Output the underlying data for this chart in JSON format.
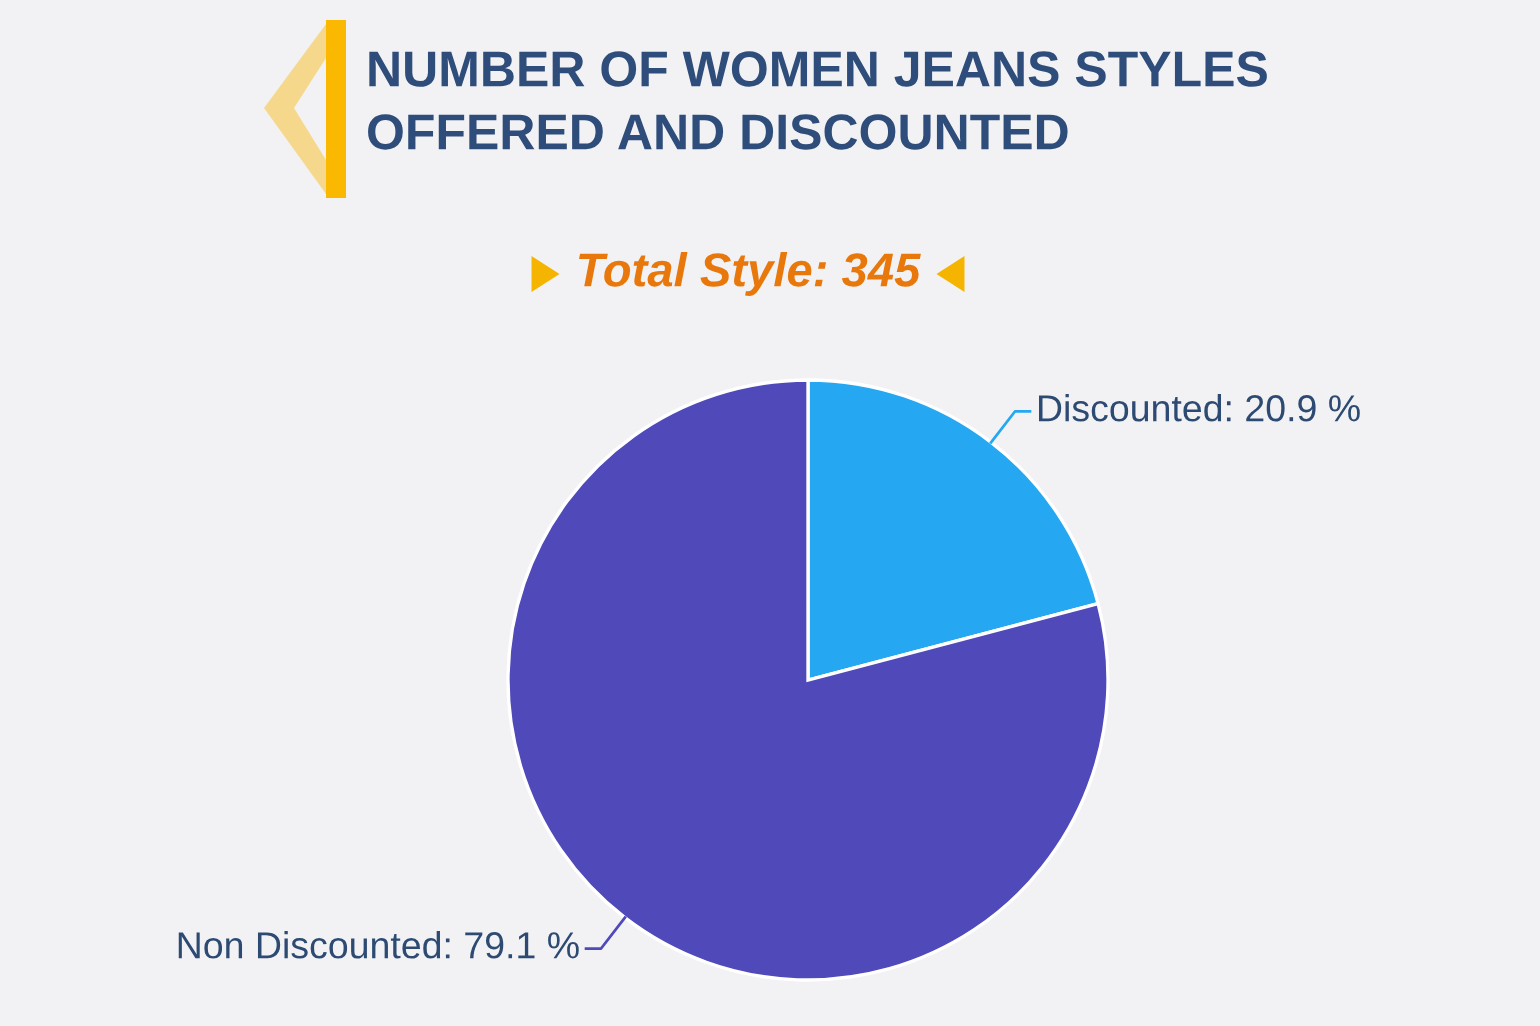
{
  "chart_data": {
    "type": "pie",
    "title": "NUMBER OF WOMEN JEANS STYLES OFFERED AND DISCOUNTED",
    "subtitle": "Total Style: 345",
    "categories": [
      "Discounted",
      "Non Discounted"
    ],
    "values": [
      20.9,
      79.1
    ],
    "colors": [
      "#25a7f1",
      "#4f49ba"
    ],
    "value_labels": [
      "20.9 %",
      "79.1 %"
    ]
  }
}
